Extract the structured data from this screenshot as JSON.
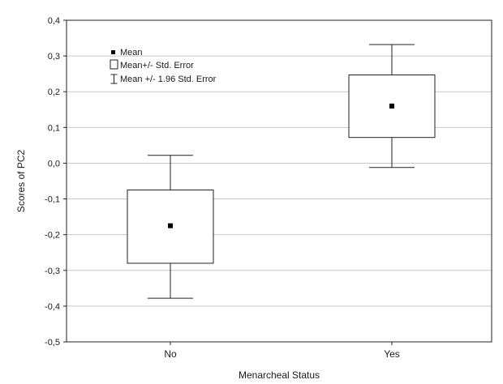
{
  "chart_data": {
    "type": "box",
    "title": "",
    "xlabel": "Menarcheal Status",
    "ylabel": "Scores of PC2",
    "ylim": [
      -0.5,
      0.4
    ],
    "yticks": [
      "-0,5",
      "-0,4",
      "-0,3",
      "-0,2",
      "-0,1",
      "0,0",
      "0,1",
      "0,2",
      "0,3",
      "0,4"
    ],
    "ytick_values": [
      -0.5,
      -0.4,
      -0.3,
      -0.2,
      -0.1,
      0.0,
      0.1,
      0.2,
      0.3,
      0.4
    ],
    "grid": true,
    "categories": [
      "No",
      "Yes"
    ],
    "groups": [
      {
        "category": "No",
        "mean": -0.175,
        "se_low": -0.28,
        "se_high": -0.075,
        "ci_low": -0.378,
        "ci_high": 0.022
      },
      {
        "category": "Yes",
        "mean": 0.16,
        "se_low": 0.072,
        "se_high": 0.247,
        "ci_low": -0.012,
        "ci_high": 0.332
      }
    ],
    "legend": {
      "placement": "top-left",
      "items": [
        {
          "symbol": "mean-marker",
          "label": "Mean"
        },
        {
          "symbol": "se-box",
          "label": "Mean+/- Std. Error"
        },
        {
          "symbol": "ci-whisker",
          "label": "Mean +/- 1.96 Std. Error"
        }
      ]
    },
    "colors": {
      "box_fill": "#ffffff",
      "line": "#222222",
      "grid": "#c8c8c8",
      "marker": "#000000"
    }
  }
}
